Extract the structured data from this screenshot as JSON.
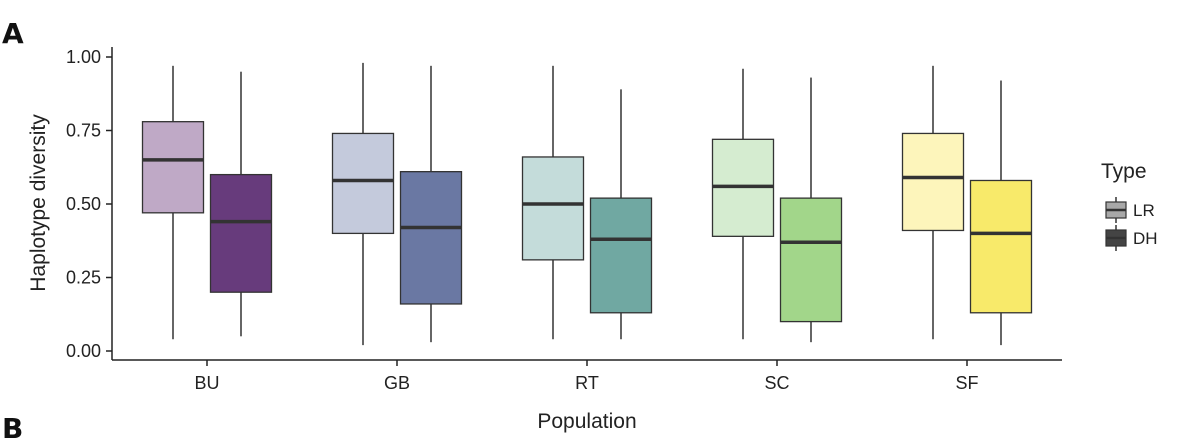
{
  "panels": {
    "a_label": "A",
    "b_label": "B"
  },
  "chart_data": {
    "type": "boxplot",
    "xlabel": "Population",
    "ylabel": "Haplotype diversity",
    "ylim": [
      0,
      1
    ],
    "yticks": [
      "0.00",
      "0.25",
      "0.50",
      "0.75",
      "1.00"
    ],
    "categories": [
      "BU",
      "GB",
      "RT",
      "SC",
      "SF"
    ],
    "legend": {
      "title": "Type",
      "position": "right",
      "entries": [
        "LR",
        "DH"
      ]
    },
    "grid": false,
    "series": [
      {
        "name": "LR",
        "colors": [
          "#bfa9c6",
          "#c4cadc",
          "#c4dcda",
          "#d5ecd0",
          "#fdf5bb"
        ],
        "boxes": [
          {
            "min": 0.04,
            "q1": 0.47,
            "median": 0.65,
            "q3": 0.78,
            "max": 0.97
          },
          {
            "min": 0.02,
            "q1": 0.4,
            "median": 0.58,
            "q3": 0.74,
            "max": 0.98
          },
          {
            "min": 0.04,
            "q1": 0.31,
            "median": 0.5,
            "q3": 0.66,
            "max": 0.97
          },
          {
            "min": 0.04,
            "q1": 0.39,
            "median": 0.56,
            "q3": 0.72,
            "max": 0.96
          },
          {
            "min": 0.04,
            "q1": 0.41,
            "median": 0.59,
            "q3": 0.74,
            "max": 0.97
          }
        ]
      },
      {
        "name": "DH",
        "colors": [
          "#673b7c",
          "#6a78a3",
          "#70a8a2",
          "#a2d68a",
          "#f8ea6a"
        ],
        "boxes": [
          {
            "min": 0.05,
            "q1": 0.2,
            "median": 0.44,
            "q3": 0.6,
            "max": 0.95
          },
          {
            "min": 0.03,
            "q1": 0.16,
            "median": 0.42,
            "q3": 0.61,
            "max": 0.97
          },
          {
            "min": 0.04,
            "q1": 0.13,
            "median": 0.38,
            "q3": 0.52,
            "max": 0.89
          },
          {
            "min": 0.03,
            "q1": 0.1,
            "median": 0.37,
            "q3": 0.52,
            "max": 0.93
          },
          {
            "min": 0.02,
            "q1": 0.13,
            "median": 0.4,
            "q3": 0.58,
            "max": 0.92
          }
        ]
      }
    ],
    "legend_swatch_colors": [
      "#a8a8a8",
      "#444444"
    ]
  }
}
